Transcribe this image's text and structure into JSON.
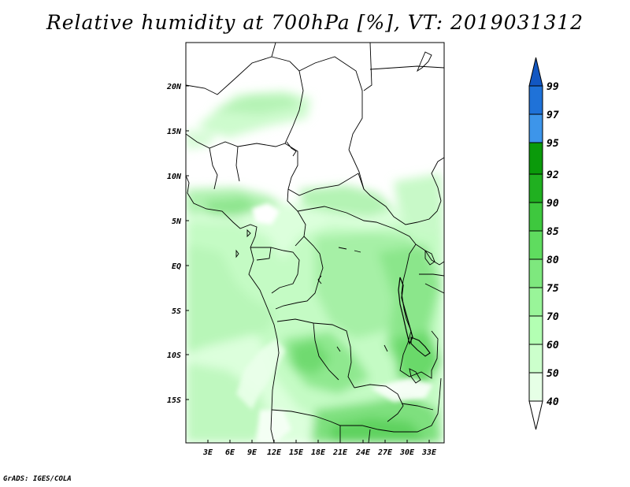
{
  "title": "Relative humidity at 700hPa [%], VT: 2019031312",
  "footer": "GrADS: IGES/COLA",
  "lat_ticks": [
    "20N",
    "15N",
    "10N",
    "5N",
    "EQ",
    "5S",
    "10S",
    "15S"
  ],
  "lon_ticks": [
    "3E",
    "6E",
    "9E",
    "12E",
    "15E",
    "18E",
    "21E",
    "24E",
    "27E",
    "30E",
    "33E"
  ],
  "colorbar": {
    "labels": [
      "40",
      "50",
      "60",
      "70",
      "75",
      "80",
      "85",
      "90",
      "92",
      "95",
      "97",
      "99"
    ],
    "colors": [
      "#ffffff",
      "#e6ffe6",
      "#ccffcc",
      "#b3ffb3",
      "#99f599",
      "#7ee87e",
      "#5fdc5f",
      "#3ec83e",
      "#20b020",
      "#0a9a0a",
      "#3d95ea",
      "#1f72d8",
      "#1257c2"
    ]
  }
}
